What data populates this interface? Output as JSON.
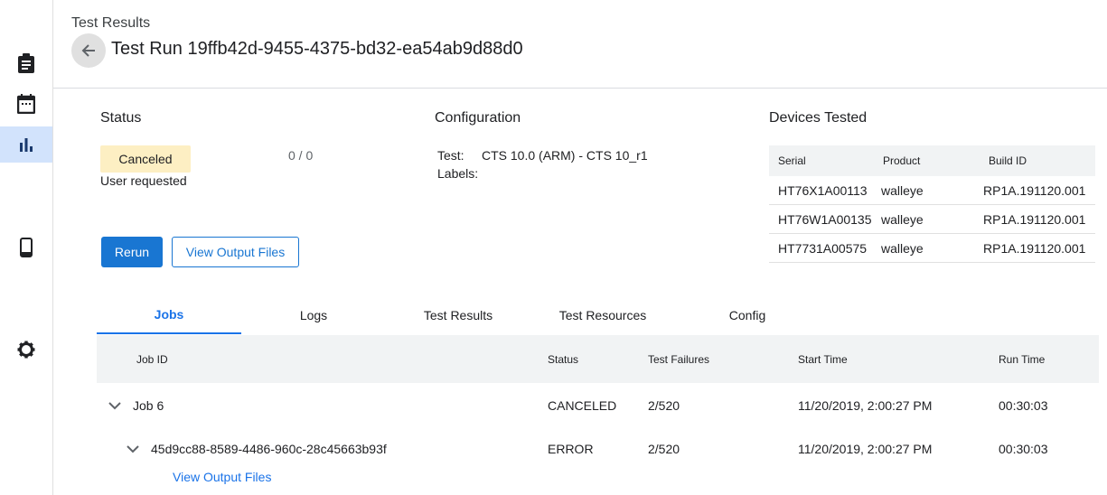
{
  "sidebar": {
    "items": [
      {
        "icon": "clipboard-icon",
        "label": ""
      },
      {
        "icon": "calendar-icon",
        "label": ""
      },
      {
        "icon": "bar-chart-icon",
        "selected": true
      },
      {
        "icon": "phone-icon"
      },
      {
        "icon": "gear-icon"
      }
    ]
  },
  "header": {
    "breadcrumb": "Test Results",
    "title": "Test Run 19ffb42d-9455-4375-bd32-ea54ab9d88d0"
  },
  "status": {
    "heading": "Status",
    "badge": "Canceled",
    "badge_color": "#fdefc3",
    "reason": "User requested",
    "count": "0 / 0"
  },
  "configuration": {
    "heading": "Configuration",
    "test_label": "Test:",
    "test_value": "CTS 10.0 (ARM) - CTS 10_r1",
    "labels_label": "Labels:"
  },
  "devices": {
    "heading": "Devices Tested",
    "columns": [
      "Serial",
      "Product",
      "Build ID"
    ],
    "rows": [
      [
        "HT76X1A00113",
        "walleye",
        "RP1A.191120.001"
      ],
      [
        "HT76W1A00135",
        "walleye",
        "RP1A.191120.001"
      ],
      [
        "HT7731A00575",
        "walleye",
        "RP1A.191120.001"
      ]
    ]
  },
  "actions": {
    "rerun": "Rerun",
    "view_output": "View Output Files",
    "accent": "#1976d2"
  },
  "tabs": [
    "Jobs",
    "Logs",
    "Test Results",
    "Test Resources",
    "Config"
  ],
  "jobs": {
    "columns": [
      "Job ID",
      "Status",
      "Test Failures",
      "Start Time",
      "Run Time"
    ],
    "rows": [
      {
        "id": "Job 6",
        "status": "CANCELED",
        "failures": "2/520",
        "start": "11/20/2019, 2:00:27 PM",
        "run": "00:30:03"
      },
      {
        "id": "45d9cc88-8589-4486-960c-28c45663b93f",
        "status": "ERROR",
        "failures": "2/520",
        "start": "11/20/2019, 2:00:27 PM",
        "run": "00:30:03",
        "link": "View Output Files"
      }
    ]
  }
}
